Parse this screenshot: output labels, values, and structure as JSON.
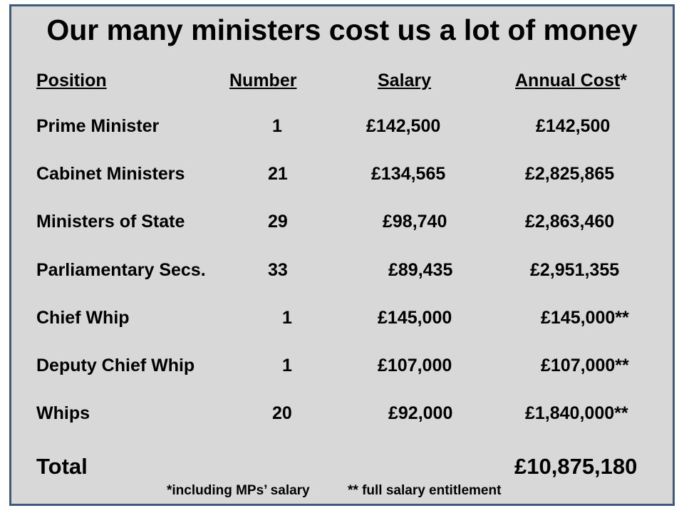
{
  "title": "Our many ministers cost us a lot of money",
  "headers": {
    "position": "Position",
    "number": "Number",
    "salary": "Salary",
    "annual_cost": "Annual Cost",
    "annual_cost_marker": "*"
  },
  "rows": [
    {
      "position": "Prime Minister",
      "number": "1",
      "salary": "£142,500",
      "annual_cost": "£142,500"
    },
    {
      "position": "Cabinet Ministers",
      "number": "21",
      "salary": "£134,565",
      "annual_cost": "£2,825,865"
    },
    {
      "position": "Ministers of State",
      "number": "29",
      "salary": "£98,740",
      "annual_cost": "£2,863,460"
    },
    {
      "position": "Parliamentary Secs.",
      "number": "33",
      "salary": "£89,435",
      "annual_cost": "£2,951,355"
    },
    {
      "position": "Chief Whip",
      "number": "1",
      "salary": "£145,000",
      "annual_cost": "£145,000**"
    },
    {
      "position": "Deputy Chief Whip",
      "number": "1",
      "salary": "£107,000",
      "annual_cost": "£107,000**"
    },
    {
      "position": "Whips",
      "number": "20",
      "salary": "£92,000",
      "annual_cost": "£1,840,000**"
    }
  ],
  "total": {
    "label": "Total",
    "value": "£10,875,180"
  },
  "footnotes": {
    "note1": "*including MPs’ salary",
    "note2": "** full salary entitlement"
  }
}
